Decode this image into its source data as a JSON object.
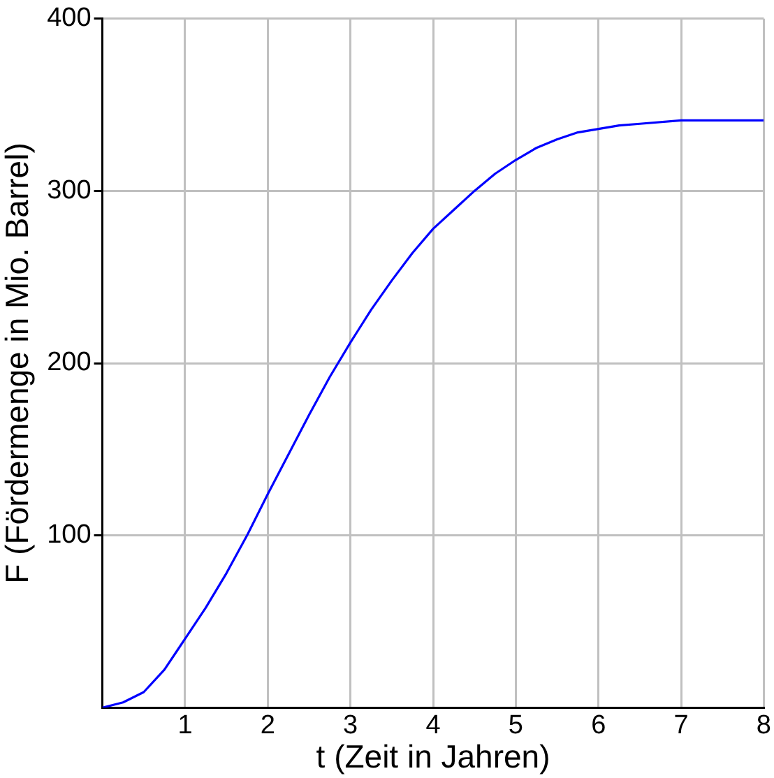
{
  "chart_data": {
    "type": "line",
    "xlabel": "t (Zeit in Jahren)",
    "ylabel": "F (Fördermenge in Mio. Barrel)",
    "x": [
      0,
      0.25,
      0.5,
      0.75,
      1,
      1.25,
      1.5,
      1.75,
      2,
      2.25,
      2.5,
      2.75,
      3,
      3.25,
      3.5,
      3.75,
      4,
      4.25,
      4.5,
      4.75,
      5,
      5.25,
      5.5,
      5.75,
      6,
      6.25,
      6.5,
      7,
      7.5,
      8
    ],
    "series": [
      {
        "color": "#0000ff",
        "values": [
          0,
          3,
          9,
          22,
          40,
          58,
          78,
          100,
          124,
          147,
          170,
          192,
          212,
          231,
          248,
          264,
          278,
          289,
          300,
          310,
          318,
          325,
          330,
          334,
          336,
          338,
          339,
          341,
          341,
          341
        ]
      }
    ],
    "xlim": [
      0,
      8
    ],
    "ylim": [
      0,
      400
    ],
    "xticks": [
      1,
      2,
      3,
      4,
      5,
      6,
      7,
      8
    ],
    "yticks": [
      100,
      200,
      300,
      400
    ],
    "grid": true,
    "legend": false,
    "marker": "none",
    "line_style": "solid"
  }
}
